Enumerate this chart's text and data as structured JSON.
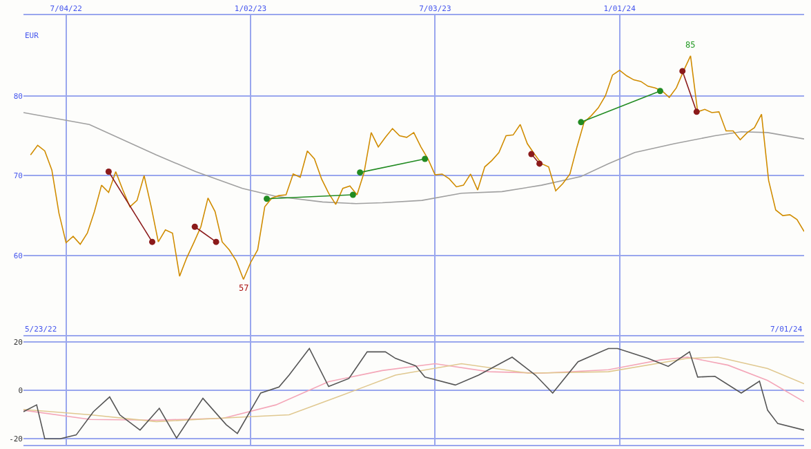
{
  "chart_data": [
    {
      "type": "line",
      "ylabel": "EUR",
      "xlim": [
        "2022-05-23",
        "2024-07-01"
      ],
      "xticks": [
        {
          "value": "2022-07-04",
          "label": "7/04/22"
        },
        {
          "value": "2023-01-02",
          "label": "1/02/23"
        },
        {
          "value": "2023-07-03",
          "label": "7/03/23"
        },
        {
          "value": "2024-01-01",
          "label": "1/01/24"
        }
      ],
      "ylim": [
        50,
        90.1
      ],
      "yticks": [
        60,
        70,
        80
      ],
      "grid": true,
      "annotations": [
        {
          "text": "85",
          "x": "2024-03-11",
          "y": 85
        },
        {
          "text": "57",
          "x": "2022-12-26",
          "y": 57
        },
        "5/23/22",
        "7/01/24"
      ],
      "series": [
        {
          "color": "#a0a0a0",
          "x": [
            "2022-05-23",
            "2022-07-27",
            "2022-10-01",
            "2022-11-09",
            "2022-12-25",
            "2023-01-27",
            "2023-03-14",
            "2023-04-16",
            "2023-05-12",
            "2023-06-20",
            "2023-07-29",
            "2023-09-07",
            "2023-10-16",
            "2023-11-24",
            "2023-12-21",
            "2024-01-16",
            "2024-02-24",
            "2024-04-04",
            "2024-04-30",
            "2024-05-26",
            "2024-07-01"
          ],
          "values": [
            77.9,
            76.4,
            72.6,
            70.5,
            68.4,
            67.4,
            66.7,
            66.5,
            66.6,
            66.9,
            67.8,
            68,
            68.8,
            69.9,
            71.5,
            72.9,
            74,
            75,
            75.5,
            75.4,
            74.6
          ]
        },
        {
          "color": "#d08c00",
          "x": [
            "2022-05-30",
            "2022-06-06",
            "2022-06-13",
            "2022-06-20",
            "2022-06-27",
            "2022-07-04",
            "2022-07-11",
            "2022-07-18",
            "2022-07-25",
            "2022-08-01",
            "2022-08-08",
            "2022-08-15",
            "2022-08-22",
            "2022-08-29",
            "2022-09-05",
            "2022-09-12",
            "2022-09-19",
            "2022-09-26",
            "2022-10-03",
            "2022-10-10",
            "2022-10-17",
            "2022-10-24",
            "2022-10-31",
            "2022-11-07",
            "2022-11-14",
            "2022-11-21",
            "2022-11-28",
            "2022-12-05",
            "2022-12-12",
            "2022-12-19",
            "2022-12-26",
            "2023-01-02",
            "2023-01-09",
            "2023-01-16",
            "2023-01-23",
            "2023-01-30",
            "2023-02-06",
            "2023-02-13",
            "2023-02-20",
            "2023-02-27",
            "2023-03-06",
            "2023-03-13",
            "2023-03-20",
            "2023-03-27",
            "2023-04-03",
            "2023-04-10",
            "2023-04-17",
            "2023-04-24",
            "2023-05-01",
            "2023-05-08",
            "2023-05-15",
            "2023-05-22",
            "2023-05-29",
            "2023-06-05",
            "2023-06-12",
            "2023-06-19",
            "2023-06-26",
            "2023-07-03",
            "2023-07-10",
            "2023-07-17",
            "2023-07-24",
            "2023-07-31",
            "2023-08-07",
            "2023-08-14",
            "2023-08-21",
            "2023-08-28",
            "2023-09-04",
            "2023-09-11",
            "2023-09-18",
            "2023-09-25",
            "2023-10-02",
            "2023-10-09",
            "2023-10-16",
            "2023-10-23",
            "2023-10-30",
            "2023-11-06",
            "2023-11-13",
            "2023-11-20",
            "2023-11-27",
            "2023-12-04",
            "2023-12-11",
            "2023-12-18",
            "2023-12-25",
            "2024-01-01",
            "2024-01-08",
            "2024-01-15",
            "2024-01-22",
            "2024-01-29",
            "2024-02-05",
            "2024-02-12",
            "2024-02-19",
            "2024-02-26",
            "2024-03-04",
            "2024-03-11",
            "2024-03-18",
            "2024-03-25",
            "2024-04-01",
            "2024-04-08",
            "2024-04-15",
            "2024-04-22",
            "2024-04-29",
            "2024-05-06",
            "2024-05-13",
            "2024-05-20",
            "2024-05-27",
            "2024-06-03",
            "2024-06-10",
            "2024-06-17",
            "2024-06-24",
            "2024-07-01"
          ],
          "values": [
            72.6,
            73.8,
            73.1,
            70.7,
            65.3,
            61.6,
            62.4,
            61.4,
            62.8,
            65.5,
            68.8,
            67.9,
            70.5,
            68.2,
            66.1,
            66.9,
            70,
            66.1,
            61.7,
            63.2,
            62.8,
            57.4,
            59.7,
            61.6,
            63.6,
            67.2,
            65.5,
            61.7,
            60.7,
            59.3,
            57,
            59.1,
            60.7,
            66.1,
            67.2,
            67.5,
            67.6,
            70.2,
            69.8,
            73.1,
            72.1,
            69.6,
            67.8,
            66.4,
            68.4,
            68.7,
            67.6,
            70.4,
            75.4,
            73.6,
            74.8,
            75.9,
            75,
            74.8,
            75.4,
            73.6,
            72.1,
            70.1,
            70.2,
            69.6,
            68.6,
            68.8,
            70.2,
            68.2,
            71.1,
            71.9,
            72.9,
            75,
            75.1,
            76.4,
            74,
            72.7,
            71.5,
            71.1,
            68.1,
            69,
            70.2,
            73.6,
            76.7,
            77.5,
            78.5,
            80,
            82.6,
            83.2,
            82.5,
            82,
            81.8,
            81.2,
            81,
            80.6,
            79.8,
            81,
            83.1,
            85,
            78,
            78.3,
            77.9,
            78,
            75.6,
            75.6,
            74.5,
            75.4,
            76,
            77.7,
            69.4,
            65.7,
            65,
            65.1,
            64.5,
            63
          ]
        },
        {
          "color": "#8b1a1a",
          "marker": "circle",
          "x": [
            "2022-08-15",
            "2022-09-27"
          ],
          "values": [
            70.5,
            61.7
          ]
        },
        {
          "color": "#8b1a1a",
          "marker": "circle",
          "x": [
            "2022-11-08",
            "2022-11-29"
          ],
          "values": [
            63.6,
            61.7
          ]
        },
        {
          "color": "#228b22",
          "marker": "circle",
          "x": [
            "2023-01-18",
            "2023-04-13"
          ],
          "values": [
            67.1,
            67.6
          ]
        },
        {
          "color": "#228b22",
          "marker": "circle",
          "x": [
            "2023-04-20",
            "2023-06-23"
          ],
          "values": [
            70.4,
            72.1
          ]
        },
        {
          "color": "#8b1a1a",
          "marker": "circle",
          "x": [
            "2023-10-06",
            "2023-10-14"
          ],
          "values": [
            72.7,
            71.5
          ]
        },
        {
          "color": "#228b22",
          "marker": "circle",
          "x": [
            "2023-11-24",
            "2024-02-10"
          ],
          "values": [
            76.7,
            80.6
          ]
        },
        {
          "color": "#8b1a1a",
          "marker": "circle",
          "x": [
            "2024-03-03",
            "2024-03-17"
          ],
          "values": [
            83.1,
            78
          ]
        }
      ]
    },
    {
      "type": "line",
      "xlim": [
        "2022-05-23",
        "2024-07-01"
      ],
      "xticks": [
        {
          "value": "2022-07-04",
          "label": null
        },
        {
          "value": "2023-01-02",
          "label": null
        },
        {
          "value": "2023-07-03",
          "label": null
        },
        {
          "value": "2024-01-01",
          "label": null
        }
      ],
      "ylim": [
        -22.5,
        22.2
      ],
      "yticks": [
        -20,
        0,
        20
      ],
      "grid": true,
      "tick_labels": "y",
      "series": [
        {
          "color": "#f4a6b8",
          "x": [
            "2022-05-23",
            "2022-07-28",
            "2022-10-01",
            "2022-12-06",
            "2023-01-27",
            "2023-03-20",
            "2023-05-12",
            "2023-07-03",
            "2023-08-25",
            "2023-10-16",
            "2023-12-21",
            "2024-02-11",
            "2024-03-08",
            "2024-04-17",
            "2024-05-26",
            "2024-07-01"
          ],
          "values": [
            -8.2,
            -12,
            -12.3,
            -11.5,
            -6,
            3.6,
            8.2,
            11,
            7.7,
            7.1,
            8.5,
            12.6,
            13.7,
            10.4,
            4.1,
            -4.7
          ]
        },
        {
          "color": "#e0c890",
          "x": [
            "2022-05-23",
            "2022-07-28",
            "2022-10-01",
            "2022-12-25",
            "2023-02-09",
            "2023-04-03",
            "2023-05-25",
            "2023-07-29",
            "2023-10-03",
            "2023-12-21",
            "2024-03-08",
            "2024-04-07",
            "2024-05-26",
            "2024-07-01"
          ],
          "values": [
            -7.9,
            -10.1,
            -12.9,
            -11,
            -10.1,
            -1.9,
            6.3,
            11,
            7.1,
            7.7,
            13.2,
            13.7,
            9,
            2.7
          ]
        },
        {
          "color": "#555555",
          "x": [
            "2022-05-23",
            "2022-06-05",
            "2022-06-13",
            "2022-06-28",
            "2022-07-14",
            "2022-07-31",
            "2022-08-16",
            "2022-08-26",
            "2022-09-15",
            "2022-10-04",
            "2022-10-21",
            "2022-11-16",
            "2022-12-09",
            "2022-12-20",
            "2023-01-12",
            "2023-01-30",
            "2023-02-09",
            "2023-03-01",
            "2023-03-20",
            "2023-04-09",
            "2023-04-27",
            "2023-05-15",
            "2023-05-25",
            "2023-06-14",
            "2023-06-23",
            "2023-07-23",
            "2023-08-15",
            "2023-09-17",
            "2023-10-10",
            "2023-10-27",
            "2023-11-21",
            "2023-12-21",
            "2023-12-30",
            "2024-01-29",
            "2024-02-18",
            "2024-03-10",
            "2024-03-18",
            "2024-04-04",
            "2024-04-30",
            "2024-05-18",
            "2024-05-26",
            "2024-06-05",
            "2024-07-01"
          ],
          "values": [
            -8.8,
            -6,
            -20,
            -20,
            -18.4,
            -8.8,
            -2.7,
            -10.1,
            -16.4,
            -7.4,
            -19.7,
            -3.3,
            -14.2,
            -17.8,
            -1.1,
            1.4,
            6.3,
            17.3,
            1.6,
            4.9,
            15.9,
            15.9,
            13.2,
            10.1,
            5.5,
            2.2,
            6.3,
            13.7,
            6.3,
            -1.1,
            11.8,
            17.3,
            17.3,
            13.2,
            9.9,
            15.9,
            5.5,
            5.8,
            -1.1,
            3.8,
            -8.2,
            -13.7,
            -16.4
          ]
        }
      ]
    }
  ]
}
